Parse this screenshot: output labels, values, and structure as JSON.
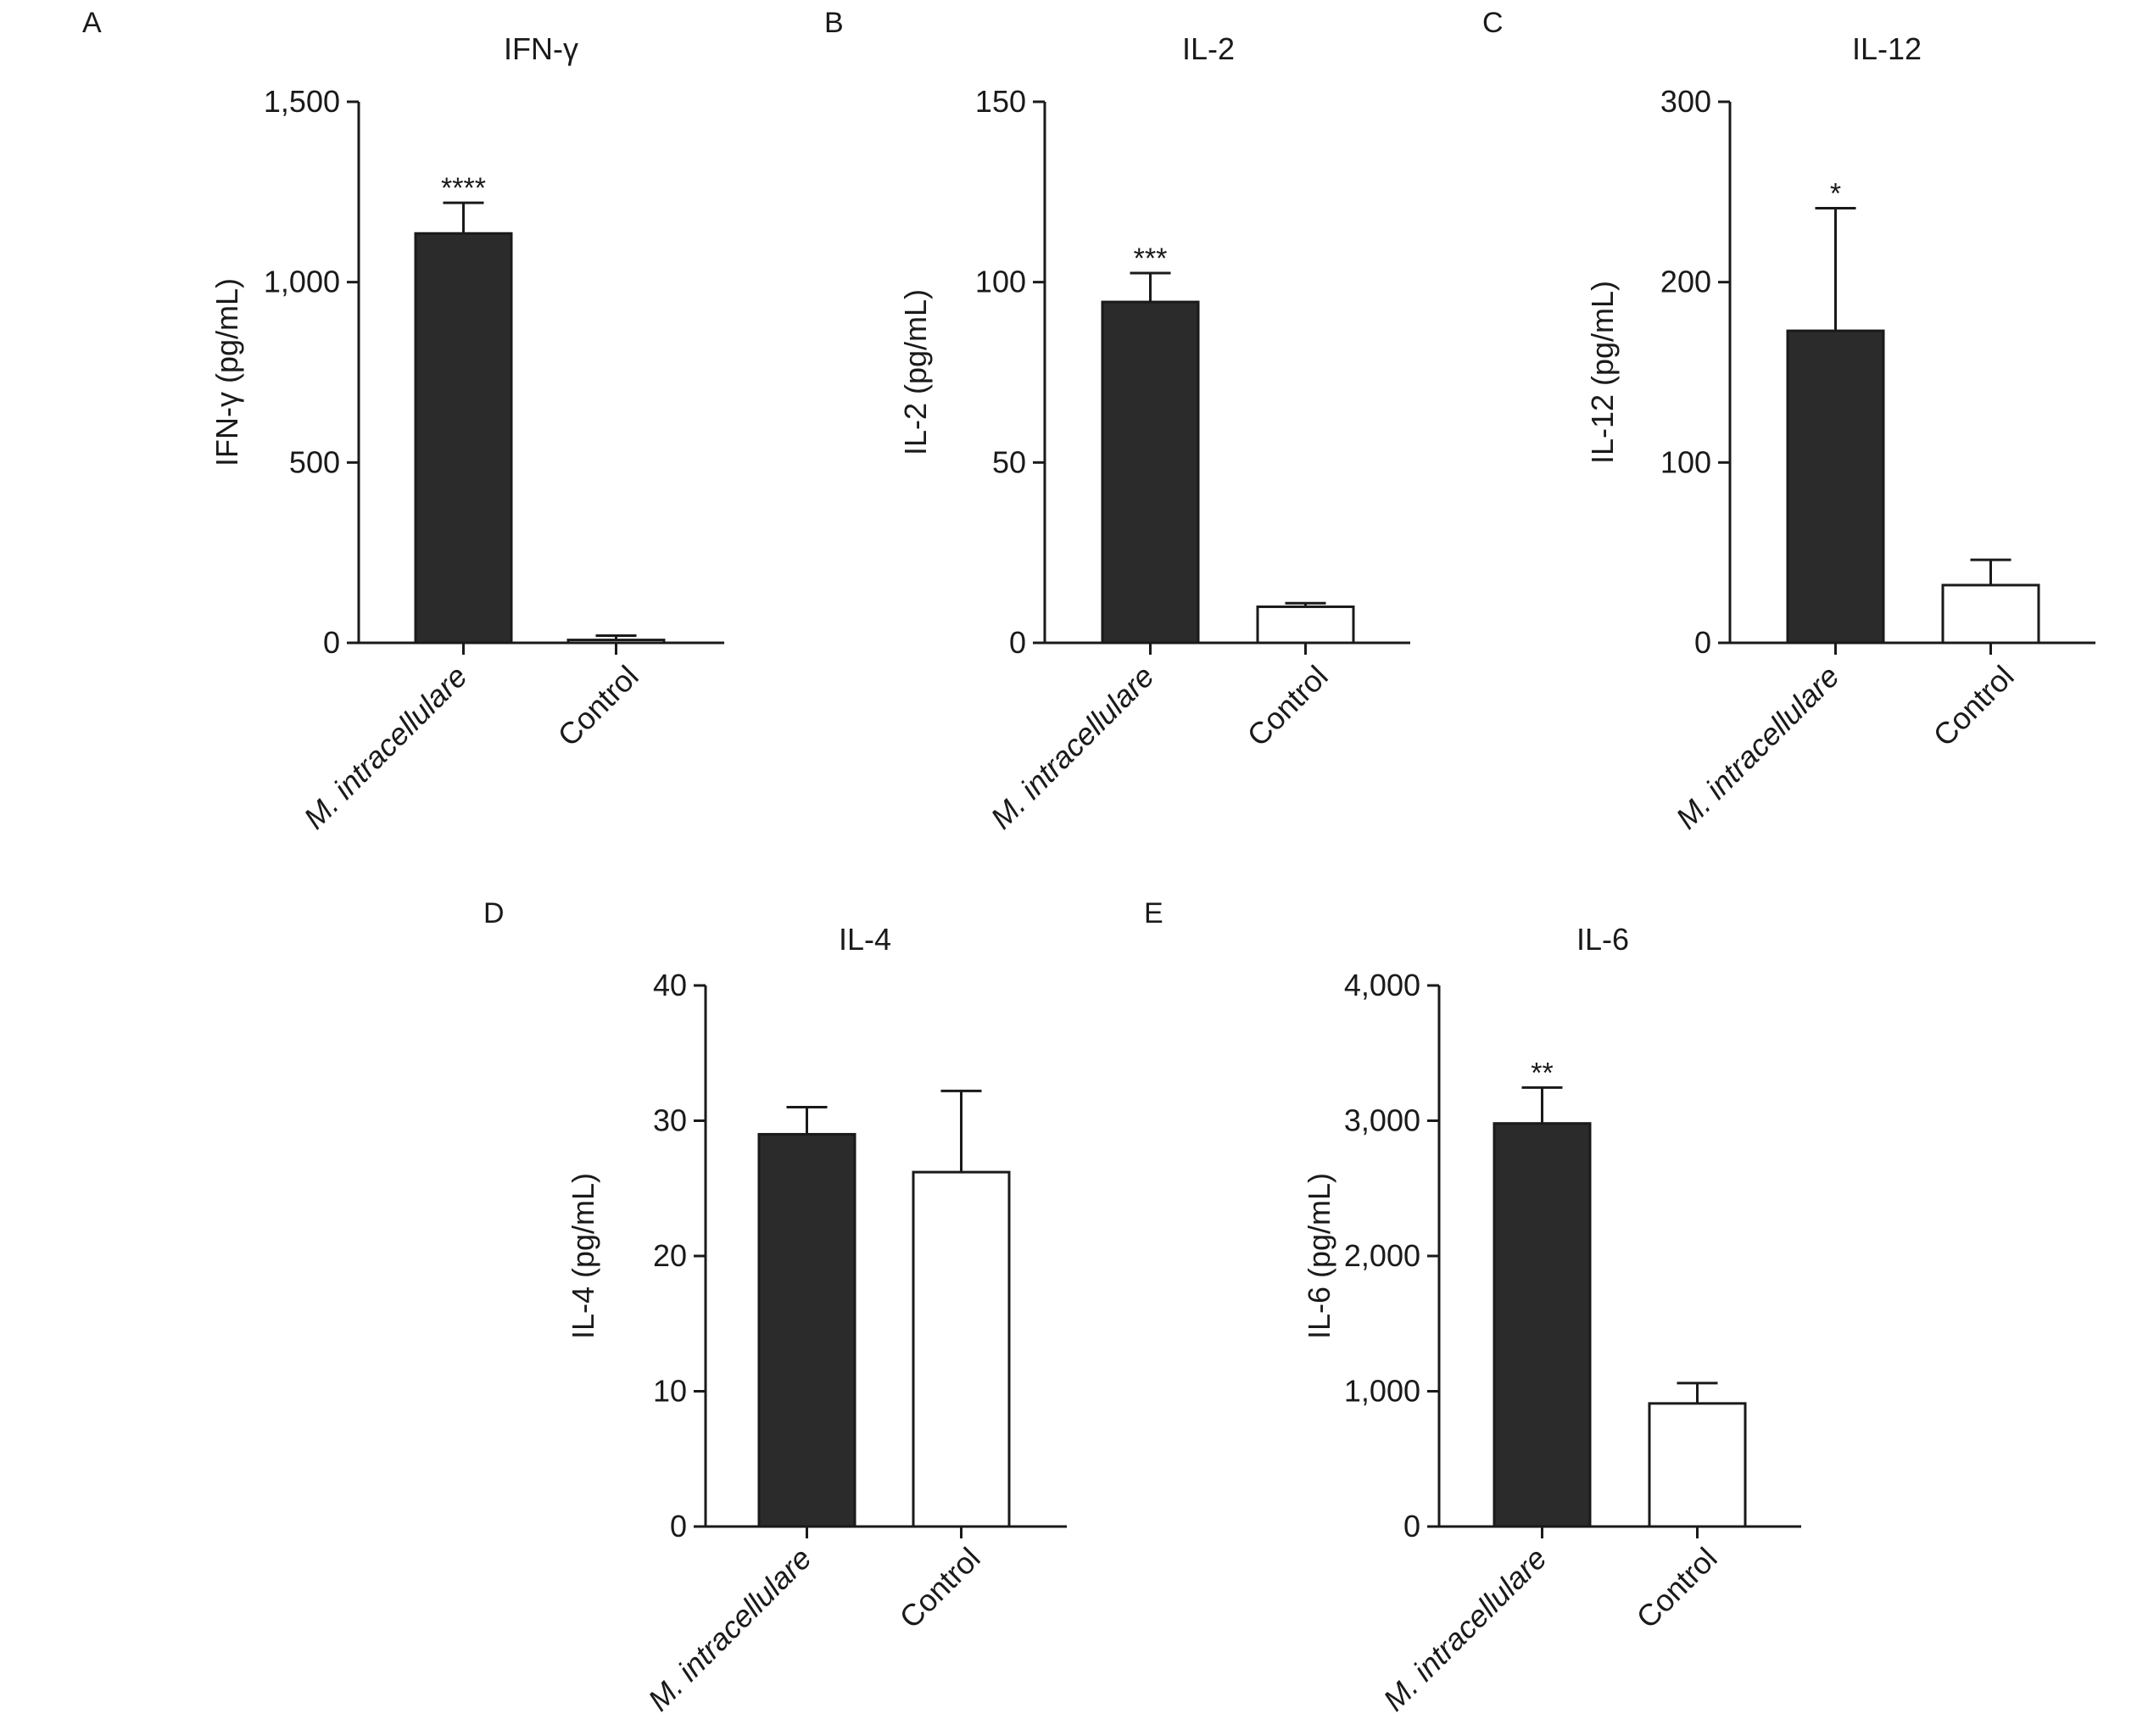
{
  "colors": {
    "treated_bar": "#2b2b2b",
    "control_bar": "#ffffff",
    "ink": "#1a1a1a"
  },
  "chart_data": [
    {
      "panel": "A",
      "type": "bar",
      "title": "IFN-γ",
      "xlabel": "",
      "ylabel": "IFN-γ (pg/mL)",
      "ylim": [
        0,
        1500
      ],
      "yticks": [
        0,
        500,
        1000,
        1500
      ],
      "ytick_labels": [
        "0",
        "500",
        "1,000",
        "1,500"
      ],
      "categories": [
        "M. intracellulare",
        "Control"
      ],
      "values": [
        1135,
        8
      ],
      "errors": [
        85,
        12
      ],
      "significance": [
        "****",
        ""
      ]
    },
    {
      "panel": "B",
      "type": "bar",
      "title": "IL-2",
      "xlabel": "",
      "ylabel": "IL-2 (pg/mL)",
      "ylim": [
        0,
        150
      ],
      "yticks": [
        0,
        50,
        100,
        150
      ],
      "ytick_labels": [
        "0",
        "50",
        "100",
        "150"
      ],
      "categories": [
        "M. intracellulare",
        "Control"
      ],
      "values": [
        94.5,
        10
      ],
      "errors": [
        8,
        1
      ],
      "significance": [
        "***",
        ""
      ]
    },
    {
      "panel": "C",
      "type": "bar",
      "title": "IL-12",
      "xlabel": "",
      "ylabel": "IL-12 (pg/mL)",
      "ylim": [
        0,
        300
      ],
      "yticks": [
        0,
        100,
        200,
        300
      ],
      "ytick_labels": [
        "0",
        "100",
        "200",
        "300"
      ],
      "categories": [
        "M. intracellulare",
        "Control"
      ],
      "values": [
        173,
        32
      ],
      "errors": [
        68,
        14
      ],
      "significance": [
        "*",
        ""
      ]
    },
    {
      "panel": "D",
      "type": "bar",
      "title": "IL-4",
      "xlabel": "",
      "ylabel": "IL-4 (pg/mL)",
      "ylim": [
        0,
        40
      ],
      "yticks": [
        0,
        10,
        20,
        30,
        40
      ],
      "ytick_labels": [
        "0",
        "10",
        "20",
        "30",
        "40"
      ],
      "categories": [
        "M. intracellulare",
        "Control"
      ],
      "values": [
        29,
        26.2
      ],
      "errors": [
        2,
        6
      ],
      "significance": [
        "",
        ""
      ]
    },
    {
      "panel": "E",
      "type": "bar",
      "title": "IL-6",
      "xlabel": "",
      "ylabel": "IL-6 (pg/mL)",
      "ylim": [
        0,
        4000
      ],
      "yticks": [
        0,
        1000,
        2000,
        3000,
        4000
      ],
      "ytick_labels": [
        "0",
        "1,000",
        "2,000",
        "3,000",
        "4,000"
      ],
      "categories": [
        "M. intracellulare",
        "Control"
      ],
      "values": [
        2980,
        910
      ],
      "errors": [
        265,
        150
      ],
      "significance": [
        "**",
        ""
      ]
    }
  ]
}
